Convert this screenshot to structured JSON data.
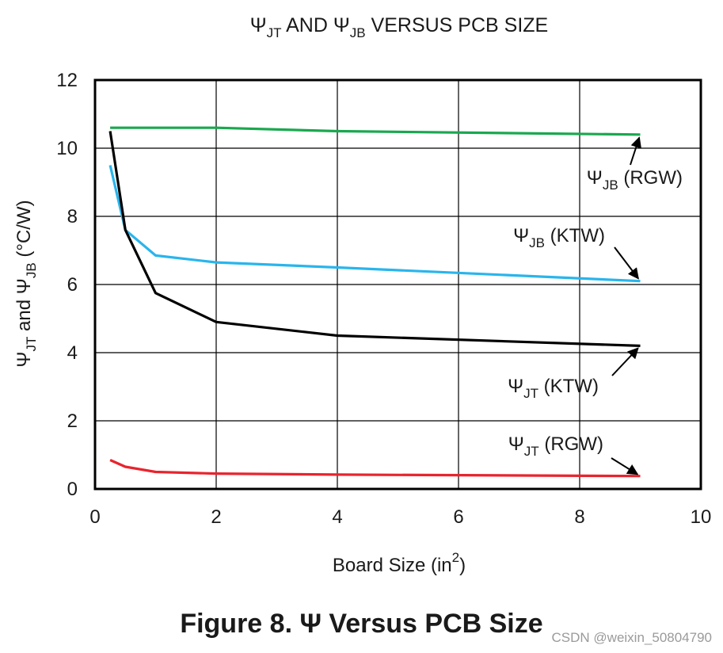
{
  "figure_caption": "Figure 8. Ψ Versus PCB Size",
  "watermark": "CSDN @weixin_50804790",
  "chart_data": {
    "type": "line",
    "title": {
      "sym1": "Ψ",
      "sub1": "JT",
      "mid": " AND ",
      "sym2": "Ψ",
      "sub2": "JB",
      "rest": " VERSUS PCB SIZE"
    },
    "xlabel": {
      "main": "Board Size (in",
      "sup": "2",
      "close": ")"
    },
    "ylabel": {
      "sym1": "Ψ",
      "sub1": "JT",
      "mid": " and ",
      "sym2": "Ψ",
      "sub2": "JB",
      "rest": " (°C/W)"
    },
    "xlim": [
      0,
      10
    ],
    "ylim": [
      0,
      12
    ],
    "xticks": [
      0,
      2,
      4,
      6,
      8,
      10
    ],
    "yticks": [
      0,
      2,
      4,
      6,
      8,
      10,
      12
    ],
    "grid": true,
    "series": [
      {
        "name": "ΨJB (RGW)",
        "color": "#1aa84f",
        "x": [
          0.25,
          0.5,
          1,
          2,
          4,
          9
        ],
        "y": [
          10.6,
          10.6,
          10.6,
          10.6,
          10.5,
          10.4
        ]
      },
      {
        "name": "ΨJB (KTW)",
        "color": "#29b5ec",
        "x": [
          0.25,
          0.5,
          1,
          2,
          4,
          9
        ],
        "y": [
          9.5,
          7.6,
          6.85,
          6.65,
          6.5,
          6.1
        ]
      },
      {
        "name": "ΨJT (KTW)",
        "color": "#000000",
        "x": [
          0.25,
          0.5,
          1,
          2,
          4,
          9
        ],
        "y": [
          10.5,
          7.6,
          5.75,
          4.9,
          4.5,
          4.2
        ]
      },
      {
        "name": "ΨJT (RGW)",
        "color": "#e8242e",
        "x": [
          0.25,
          0.5,
          1,
          2,
          4,
          9
        ],
        "y": [
          0.85,
          0.65,
          0.5,
          0.45,
          0.42,
          0.38
        ]
      }
    ],
    "annotations": [
      {
        "sym": "Ψ",
        "sub": "JB",
        "text": " (RGW)",
        "series": 0
      },
      {
        "sym": "Ψ",
        "sub": "JB",
        "text": " (KTW)",
        "series": 1
      },
      {
        "sym": "Ψ",
        "sub": "JT",
        "text": " (KTW)",
        "series": 2
      },
      {
        "sym": "Ψ",
        "sub": "JT",
        "text": " (RGW)",
        "series": 3
      }
    ]
  }
}
